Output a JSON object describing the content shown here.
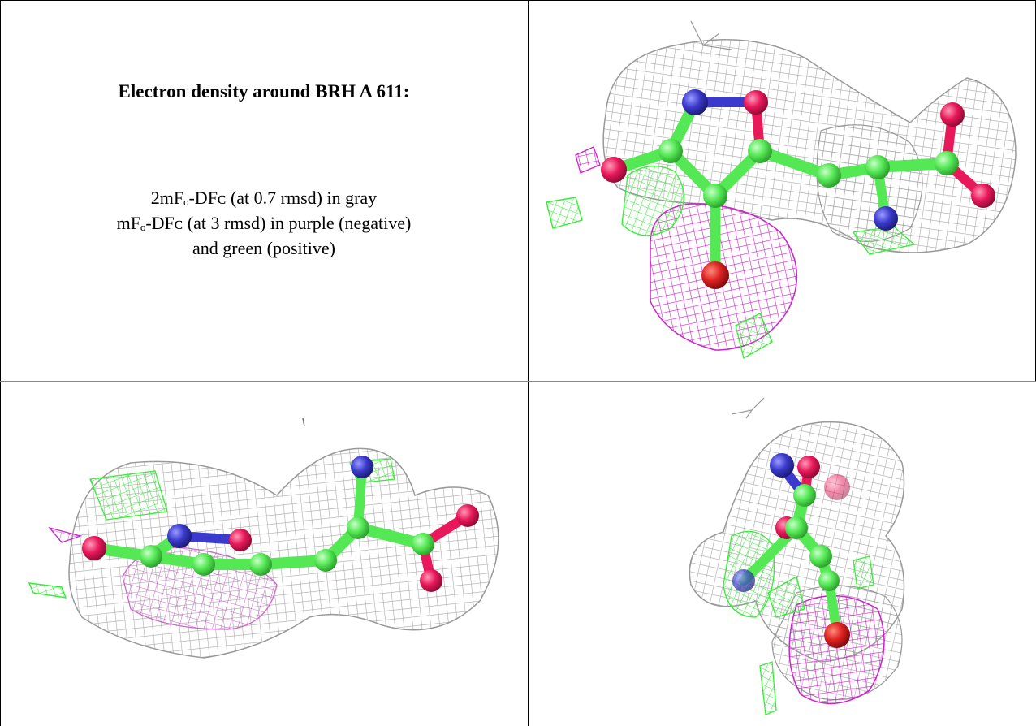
{
  "caption": {
    "title": "Electron density around BRH A 611:",
    "line1": "2mFₒ-DFᴄ (at 0.7 rmsd) in gray",
    "line2": "mFₒ-DFᴄ (at 3 rmsd) in purple (negative)",
    "line3": "and green (positive)"
  },
  "colors": {
    "mesh_2fofc": "#a8a8a8",
    "mesh_negative": "#cc22cc",
    "mesh_positive": "#33ee33",
    "carbon": "#55e855",
    "oxygen": "#e8185a",
    "nitrogen": "#3a3acc",
    "red_oxygen": "#dd2222"
  },
  "views": [
    {
      "name": "top-right-view"
    },
    {
      "name": "bottom-left-view"
    },
    {
      "name": "bottom-right-view"
    }
  ]
}
